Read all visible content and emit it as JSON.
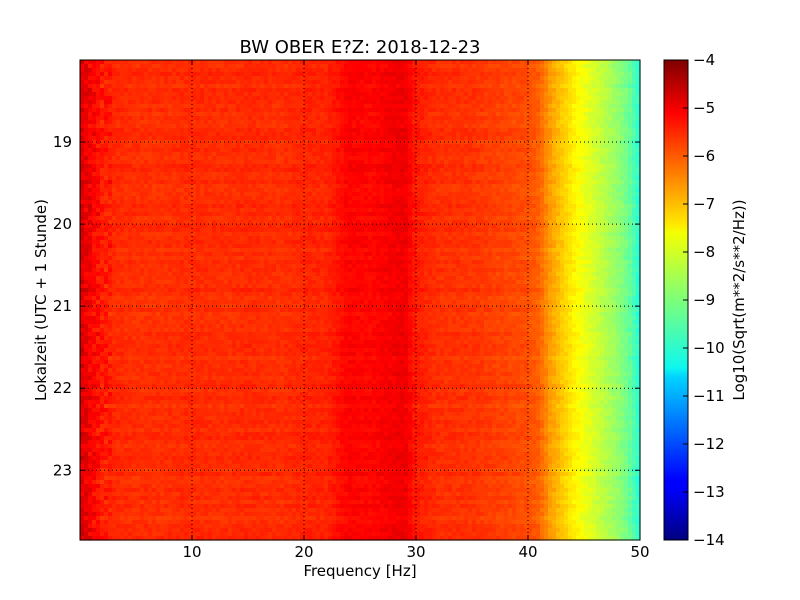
{
  "chart_data": {
    "type": "heatmap",
    "title": "BW OBER E?Z: 2018-12-23",
    "xlabel": "Frequency [Hz]",
    "ylabel": "Lokalzeit (UTC + 1 Stunde)",
    "xlim": [
      0,
      50
    ],
    "ylim": [
      18.0,
      23.85
    ],
    "x_ticks": [
      10,
      20,
      30,
      40,
      50
    ],
    "x_tick_labels": [
      "10",
      "20",
      "30",
      "40",
      "50"
    ],
    "y_ticks": [
      19,
      20,
      21,
      22,
      23
    ],
    "y_tick_labels": [
      "19",
      "20",
      "21",
      "22",
      "23"
    ],
    "y_inverted": true,
    "grid": true,
    "colormap": "jet",
    "colorbar": {
      "label": "Log10(Sqrt(m**2/s**2/Hz))",
      "range": [
        -14,
        -4
      ],
      "ticks": [
        -4,
        -5,
        -6,
        -7,
        -8,
        -9,
        -10,
        -11,
        -12,
        -13,
        -14
      ],
      "tick_labels": [
        "−4",
        "−5",
        "−6",
        "−7",
        "−8",
        "−9",
        "−10",
        "−11",
        "−12",
        "−13",
        "−14"
      ]
    },
    "spectrum_profile": {
      "frequencies": [
        0,
        1,
        2,
        5,
        8,
        10,
        13,
        15,
        18,
        20,
        22,
        24,
        26,
        28,
        29,
        30,
        32,
        35,
        38,
        40,
        41,
        42,
        43,
        44,
        45,
        46,
        47,
        48,
        49,
        50
      ],
      "values": [
        -5.0,
        -5.3,
        -5.6,
        -5.7,
        -5.7,
        -5.65,
        -5.7,
        -5.65,
        -5.7,
        -5.6,
        -5.6,
        -5.25,
        -5.3,
        -5.15,
        -5.1,
        -5.5,
        -5.7,
        -5.75,
        -5.9,
        -6.0,
        -6.2,
        -6.8,
        -7.2,
        -7.6,
        -7.9,
        -8.2,
        -8.5,
        -8.8,
        -9.2,
        -9.9
      ]
    }
  }
}
